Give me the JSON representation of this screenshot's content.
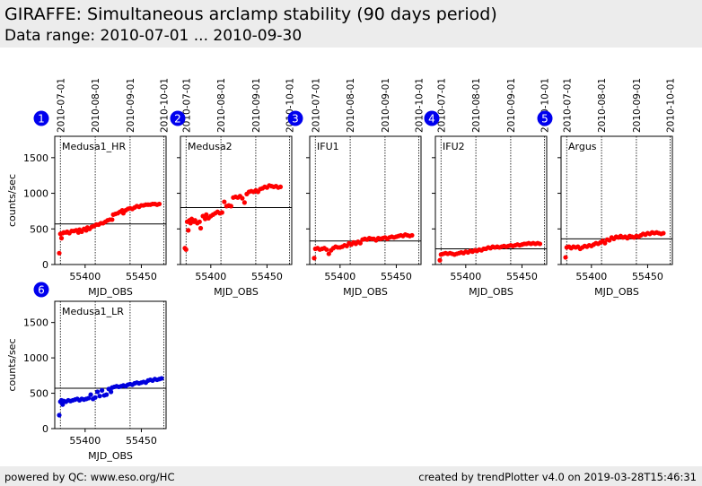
{
  "header": {
    "title": "GIRAFFE: Simultaneous arclamp stability (90 days period)",
    "subtitle": "Data range: 2010-07-01 ... 2010-09-30"
  },
  "footer": {
    "left": "powered by QC: www.eso.org/HC",
    "right": "created by trendPlotter v4.0 on 2019-03-28T15:46:31"
  },
  "colors": {
    "red_series": "#ff0000",
    "blue_series": "#0000dd",
    "badge": "#0000ee"
  },
  "chart_data": [
    {
      "type": "scatter",
      "number": "1",
      "panel_label": "Medusa1_HR",
      "color": "red",
      "xlabel": "MJD_OBS",
      "ylabel": "counts/sec",
      "xlim": [
        55373,
        55472
      ],
      "ylim": [
        0,
        1800
      ],
      "xticks": [
        55400,
        55450
      ],
      "yticks": [
        0,
        500,
        1000,
        1500
      ],
      "date_markers": [
        {
          "mjd": 55378,
          "label": "2010-07-01"
        },
        {
          "mjd": 55409,
          "label": "2010-08-01"
        },
        {
          "mjd": 55440,
          "label": "2010-09-01"
        },
        {
          "mjd": 55470,
          "label": "2010-10-01"
        }
      ],
      "reference_line": 570,
      "points": [
        [
          55377,
          160
        ],
        [
          55378,
          430
        ],
        [
          55379,
          370
        ],
        [
          55380,
          440
        ],
        [
          55381,
          450
        ],
        [
          55383,
          450
        ],
        [
          55384,
          460
        ],
        [
          55386,
          440
        ],
        [
          55388,
          470
        ],
        [
          55390,
          470
        ],
        [
          55392,
          480
        ],
        [
          55394,
          450
        ],
        [
          55395,
          490
        ],
        [
          55397,
          460
        ],
        [
          55399,
          500
        ],
        [
          55401,
          480
        ],
        [
          55402,
          520
        ],
        [
          55404,
          500
        ],
        [
          55406,
          530
        ],
        [
          55408,
          540
        ],
        [
          55410,
          560
        ],
        [
          55412,
          560
        ],
        [
          55414,
          580
        ],
        [
          55416,
          580
        ],
        [
          55418,
          600
        ],
        [
          55420,
          620
        ],
        [
          55422,
          630
        ],
        [
          55424,
          630
        ],
        [
          55425,
          700
        ],
        [
          55427,
          710
        ],
        [
          55429,
          720
        ],
        [
          55431,
          740
        ],
        [
          55433,
          760
        ],
        [
          55434,
          720
        ],
        [
          55436,
          760
        ],
        [
          55438,
          780
        ],
        [
          55440,
          790
        ],
        [
          55442,
          780
        ],
        [
          55444,
          800
        ],
        [
          55446,
          820
        ],
        [
          55448,
          810
        ],
        [
          55450,
          830
        ],
        [
          55452,
          830
        ],
        [
          55454,
          840
        ],
        [
          55456,
          840
        ],
        [
          55458,
          840
        ],
        [
          55460,
          850
        ],
        [
          55462,
          850
        ],
        [
          55464,
          840
        ],
        [
          55466,
          850
        ]
      ]
    },
    {
      "type": "scatter",
      "number": "2",
      "panel_label": "Medusa2",
      "color": "red",
      "xlabel": "MJD_OBS",
      "ylabel": "",
      "xlim": [
        55373,
        55472
      ],
      "ylim": [
        0,
        1800
      ],
      "xticks": [
        55400,
        55450
      ],
      "yticks": [
        0,
        500,
        1000,
        1500
      ],
      "date_markers": [
        {
          "mjd": 55378,
          "label": "2010-07-01"
        },
        {
          "mjd": 55409,
          "label": "2010-08-01"
        },
        {
          "mjd": 55440,
          "label": "2010-09-01"
        },
        {
          "mjd": 55470,
          "label": "2010-10-01"
        }
      ],
      "reference_line": 800,
      "points": [
        [
          55377,
          230
        ],
        [
          55378,
          210
        ],
        [
          55379,
          600
        ],
        [
          55380,
          480
        ],
        [
          55381,
          620
        ],
        [
          55382,
          580
        ],
        [
          55383,
          640
        ],
        [
          55385,
          600
        ],
        [
          55386,
          620
        ],
        [
          55388,
          580
        ],
        [
          55390,
          600
        ],
        [
          55391,
          510
        ],
        [
          55393,
          680
        ],
        [
          55395,
          640
        ],
        [
          55396,
          700
        ],
        [
          55398,
          650
        ],
        [
          55400,
          680
        ],
        [
          55402,
          700
        ],
        [
          55404,
          720
        ],
        [
          55406,
          740
        ],
        [
          55408,
          720
        ],
        [
          55410,
          730
        ],
        [
          55412,
          880
        ],
        [
          55414,
          820
        ],
        [
          55416,
          830
        ],
        [
          55418,
          820
        ],
        [
          55420,
          940
        ],
        [
          55422,
          950
        ],
        [
          55424,
          940
        ],
        [
          55426,
          960
        ],
        [
          55428,
          930
        ],
        [
          55430,
          870
        ],
        [
          55432,
          990
        ],
        [
          55434,
          1020
        ],
        [
          55436,
          1030
        ],
        [
          55438,
          1020
        ],
        [
          55440,
          1040
        ],
        [
          55442,
          1020
        ],
        [
          55444,
          1060
        ],
        [
          55446,
          1070
        ],
        [
          55448,
          1090
        ],
        [
          55450,
          1080
        ],
        [
          55452,
          1110
        ],
        [
          55454,
          1100
        ],
        [
          55456,
          1090
        ],
        [
          55458,
          1100
        ],
        [
          55460,
          1080
        ],
        [
          55462,
          1090
        ]
      ]
    },
    {
      "type": "scatter",
      "number": "3",
      "panel_label": "IFU1",
      "color": "red",
      "xlabel": "MJD_OBS",
      "ylabel": "",
      "xlim": [
        55373,
        55472
      ],
      "ylim": [
        0,
        1800
      ],
      "xticks": [
        55400,
        55450
      ],
      "yticks": [
        0,
        500,
        1000,
        1500
      ],
      "date_markers": [
        {
          "mjd": 55378,
          "label": "2010-07-01"
        },
        {
          "mjd": 55409,
          "label": "2010-08-01"
        },
        {
          "mjd": 55440,
          "label": "2010-09-01"
        },
        {
          "mjd": 55470,
          "label": "2010-10-01"
        }
      ],
      "reference_line": 330,
      "points": [
        [
          55377,
          90
        ],
        [
          55378,
          220
        ],
        [
          55380,
          230
        ],
        [
          55382,
          210
        ],
        [
          55384,
          220
        ],
        [
          55386,
          230
        ],
        [
          55388,
          210
        ],
        [
          55390,
          150
        ],
        [
          55392,
          200
        ],
        [
          55394,
          230
        ],
        [
          55396,
          250
        ],
        [
          55398,
          240
        ],
        [
          55400,
          240
        ],
        [
          55402,
          250
        ],
        [
          55404,
          270
        ],
        [
          55406,
          260
        ],
        [
          55408,
          300
        ],
        [
          55410,
          280
        ],
        [
          55412,
          310
        ],
        [
          55414,
          290
        ],
        [
          55416,
          320
        ],
        [
          55418,
          300
        ],
        [
          55420,
          350
        ],
        [
          55422,
          360
        ],
        [
          55424,
          350
        ],
        [
          55426,
          370
        ],
        [
          55428,
          360
        ],
        [
          55430,
          360
        ],
        [
          55432,
          340
        ],
        [
          55434,
          370
        ],
        [
          55436,
          360
        ],
        [
          55438,
          370
        ],
        [
          55440,
          380
        ],
        [
          55442,
          360
        ],
        [
          55444,
          380
        ],
        [
          55446,
          390
        ],
        [
          55448,
          380
        ],
        [
          55450,
          390
        ],
        [
          55452,
          400
        ],
        [
          55454,
          410
        ],
        [
          55456,
          400
        ],
        [
          55458,
          420
        ],
        [
          55460,
          410
        ],
        [
          55462,
          400
        ],
        [
          55464,
          410
        ]
      ]
    },
    {
      "type": "scatter",
      "number": "4",
      "panel_label": "IFU2",
      "color": "red",
      "xlabel": "MJD_OBS",
      "ylabel": "",
      "xlim": [
        55373,
        55472
      ],
      "ylim": [
        0,
        1800
      ],
      "xticks": [
        55400,
        55450
      ],
      "yticks": [
        0,
        500,
        1000,
        1500
      ],
      "date_markers": [
        {
          "mjd": 55378,
          "label": "2010-07-01"
        },
        {
          "mjd": 55409,
          "label": "2010-08-01"
        },
        {
          "mjd": 55440,
          "label": "2010-09-01"
        },
        {
          "mjd": 55470,
          "label": "2010-10-01"
        }
      ],
      "reference_line": 220,
      "points": [
        [
          55377,
          60
        ],
        [
          55378,
          140
        ],
        [
          55380,
          150
        ],
        [
          55382,
          160
        ],
        [
          55384,
          150
        ],
        [
          55386,
          160
        ],
        [
          55388,
          150
        ],
        [
          55390,
          140
        ],
        [
          55392,
          150
        ],
        [
          55394,
          160
        ],
        [
          55396,
          170
        ],
        [
          55398,
          160
        ],
        [
          55400,
          180
        ],
        [
          55402,
          170
        ],
        [
          55404,
          190
        ],
        [
          55406,
          180
        ],
        [
          55408,
          200
        ],
        [
          55410,
          190
        ],
        [
          55412,
          210
        ],
        [
          55414,
          200
        ],
        [
          55416,
          220
        ],
        [
          55418,
          220
        ],
        [
          55420,
          240
        ],
        [
          55422,
          230
        ],
        [
          55424,
          250
        ],
        [
          55426,
          240
        ],
        [
          55428,
          250
        ],
        [
          55430,
          240
        ],
        [
          55432,
          250
        ],
        [
          55434,
          260
        ],
        [
          55436,
          250
        ],
        [
          55438,
          260
        ],
        [
          55440,
          270
        ],
        [
          55442,
          260
        ],
        [
          55444,
          270
        ],
        [
          55446,
          280
        ],
        [
          55448,
          270
        ],
        [
          55450,
          280
        ],
        [
          55452,
          290
        ],
        [
          55454,
          290
        ],
        [
          55456,
          300
        ],
        [
          55458,
          290
        ],
        [
          55460,
          300
        ],
        [
          55462,
          290
        ],
        [
          55464,
          300
        ],
        [
          55466,
          290
        ]
      ]
    },
    {
      "type": "scatter",
      "number": "5",
      "panel_label": "Argus",
      "color": "red",
      "xlabel": "MJD_OBS",
      "ylabel": "",
      "xlim": [
        55373,
        55472
      ],
      "ylim": [
        0,
        1800
      ],
      "xticks": [
        55400,
        55450
      ],
      "yticks": [
        0,
        500,
        1000,
        1500
      ],
      "date_markers": [
        {
          "mjd": 55378,
          "label": "2010-07-01"
        },
        {
          "mjd": 55409,
          "label": "2010-08-01"
        },
        {
          "mjd": 55440,
          "label": "2010-09-01"
        },
        {
          "mjd": 55470,
          "label": "2010-10-01"
        }
      ],
      "reference_line": 360,
      "points": [
        [
          55377,
          100
        ],
        [
          55378,
          240
        ],
        [
          55380,
          250
        ],
        [
          55382,
          230
        ],
        [
          55384,
          250
        ],
        [
          55386,
          240
        ],
        [
          55388,
          250
        ],
        [
          55390,
          220
        ],
        [
          55392,
          240
        ],
        [
          55394,
          260
        ],
        [
          55396,
          250
        ],
        [
          55398,
          270
        ],
        [
          55400,
          260
        ],
        [
          55402,
          280
        ],
        [
          55404,
          300
        ],
        [
          55406,
          290
        ],
        [
          55408,
          310
        ],
        [
          55410,
          330
        ],
        [
          55412,
          300
        ],
        [
          55414,
          350
        ],
        [
          55416,
          340
        ],
        [
          55418,
          380
        ],
        [
          55420,
          360
        ],
        [
          55422,
          390
        ],
        [
          55424,
          380
        ],
        [
          55426,
          400
        ],
        [
          55428,
          380
        ],
        [
          55430,
          390
        ],
        [
          55432,
          370
        ],
        [
          55434,
          400
        ],
        [
          55436,
          390
        ],
        [
          55438,
          380
        ],
        [
          55440,
          400
        ],
        [
          55442,
          390
        ],
        [
          55444,
          410
        ],
        [
          55446,
          430
        ],
        [
          55448,
          420
        ],
        [
          55450,
          440
        ],
        [
          55452,
          430
        ],
        [
          55454,
          450
        ],
        [
          55456,
          440
        ],
        [
          55458,
          450
        ],
        [
          55460,
          440
        ],
        [
          55462,
          430
        ],
        [
          55464,
          440
        ]
      ]
    },
    {
      "type": "scatter",
      "number": "6",
      "panel_label": "Medusa1_LR",
      "color": "blue",
      "xlabel": "MJD_OBS",
      "ylabel": "counts/sec",
      "xlim": [
        55373,
        55472
      ],
      "ylim": [
        0,
        1800
      ],
      "xticks": [
        55400,
        55450
      ],
      "yticks": [
        0,
        500,
        1000,
        1500
      ],
      "date_markers": [
        {
          "mjd": 55378,
          "label": "2010-07-01"
        },
        {
          "mjd": 55409,
          "label": "2010-08-01"
        },
        {
          "mjd": 55440,
          "label": "2010-09-01"
        },
        {
          "mjd": 55470,
          "label": "2010-10-01"
        }
      ],
      "reference_line": 570,
      "points": [
        [
          55377,
          190
        ],
        [
          55378,
          380
        ],
        [
          55379,
          400
        ],
        [
          55380,
          340
        ],
        [
          55381,
          390
        ],
        [
          55383,
          380
        ],
        [
          55385,
          400
        ],
        [
          55387,
          390
        ],
        [
          55389,
          400
        ],
        [
          55391,
          410
        ],
        [
          55393,
          420
        ],
        [
          55395,
          400
        ],
        [
          55397,
          420
        ],
        [
          55399,
          410
        ],
        [
          55401,
          420
        ],
        [
          55403,
          430
        ],
        [
          55405,
          480
        ],
        [
          55407,
          420
        ],
        [
          55409,
          440
        ],
        [
          55411,
          520
        ],
        [
          55413,
          460
        ],
        [
          55415,
          540
        ],
        [
          55417,
          470
        ],
        [
          55419,
          480
        ],
        [
          55421,
          560
        ],
        [
          55423,
          520
        ],
        [
          55424,
          580
        ],
        [
          55426,
          590
        ],
        [
          55428,
          600
        ],
        [
          55430,
          590
        ],
        [
          55432,
          600
        ],
        [
          55434,
          610
        ],
        [
          55436,
          600
        ],
        [
          55438,
          620
        ],
        [
          55440,
          630
        ],
        [
          55442,
          620
        ],
        [
          55444,
          640
        ],
        [
          55446,
          650
        ],
        [
          55448,
          640
        ],
        [
          55450,
          650
        ],
        [
          55452,
          660
        ],
        [
          55454,
          650
        ],
        [
          55456,
          680
        ],
        [
          55458,
          690
        ],
        [
          55460,
          680
        ],
        [
          55462,
          700
        ],
        [
          55464,
          690
        ],
        [
          55466,
          700
        ],
        [
          55468,
          710
        ]
      ]
    }
  ]
}
